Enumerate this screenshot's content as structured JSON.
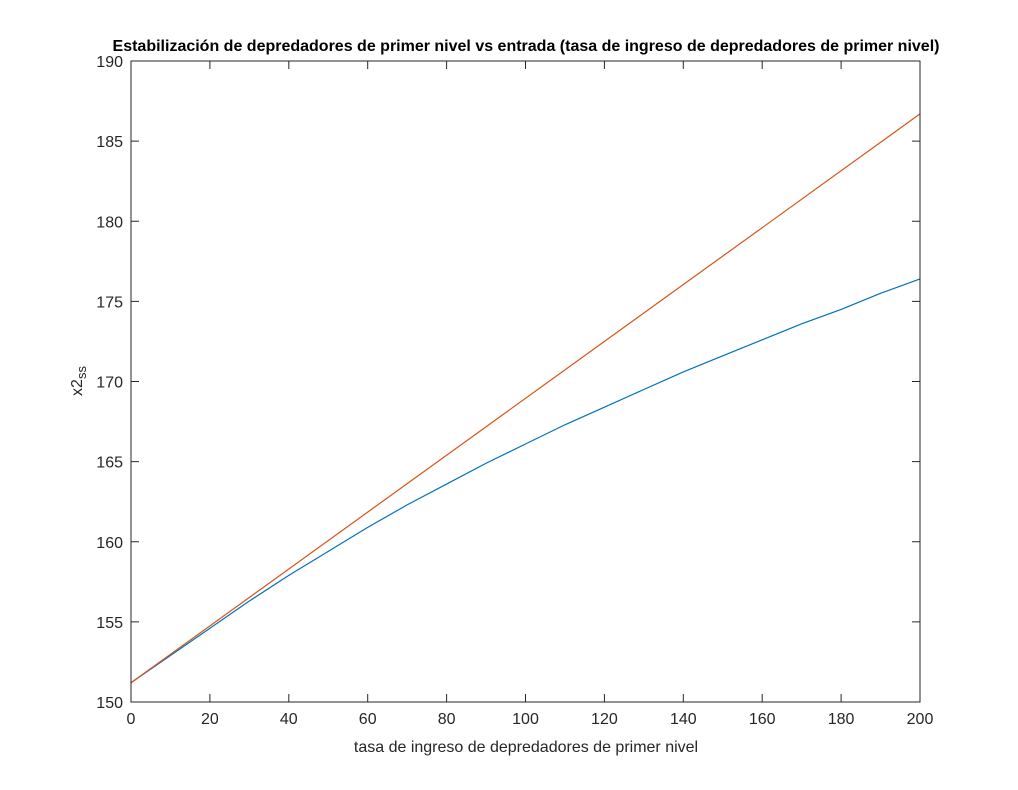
{
  "chart_data": {
    "type": "line",
    "title": "Estabilización de depredadores de primer nivel vs entrada (tasa de ingreso de depredadores de primer nivel)",
    "xlabel": "tasa de ingreso de depredadores de primer nivel",
    "ylabel": {
      "base": "x2",
      "subscript": "ss"
    },
    "xlim": [
      0,
      200
    ],
    "ylim": [
      150,
      190
    ],
    "xticks": [
      0,
      20,
      40,
      60,
      80,
      100,
      120,
      140,
      160,
      180,
      200
    ],
    "yticks": [
      150,
      155,
      160,
      165,
      170,
      175,
      180,
      185,
      190
    ],
    "grid": false,
    "legend": "none",
    "series": [
      {
        "color": "#0072bd",
        "x": [
          0,
          10,
          20,
          30,
          40,
          50,
          60,
          70,
          80,
          90,
          100,
          110,
          120,
          130,
          140,
          150,
          160,
          170,
          180,
          190,
          200
        ],
        "y": [
          151.2,
          152.9,
          154.6,
          156.3,
          157.9,
          159.4,
          160.9,
          162.3,
          163.6,
          164.9,
          166.1,
          167.3,
          168.4,
          169.5,
          170.6,
          171.6,
          172.6,
          173.6,
          174.5,
          175.5,
          176.4
        ]
      },
      {
        "color": "#d95319",
        "x": [
          0,
          200
        ],
        "y": [
          151.2,
          186.7
        ]
      }
    ]
  }
}
